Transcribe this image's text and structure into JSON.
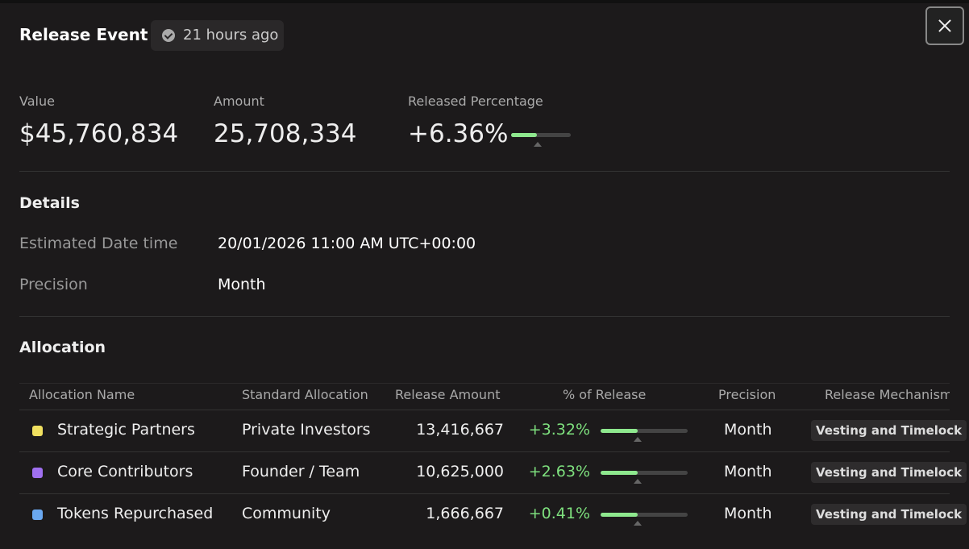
{
  "header": {
    "title": "Release Event",
    "time": "21 hours ago"
  },
  "stats": [
    {
      "label": "Value",
      "value": "$45,760,834"
    },
    {
      "label": "Amount",
      "value": "25,708,334"
    },
    {
      "label": "Released Percentage",
      "value": "+6.36%"
    }
  ],
  "details": {
    "title": "Details",
    "rows": [
      [
        "Estimated Date time",
        "20/01/2026 11:00 AM UTC+00:00"
      ],
      [
        "Precision",
        "Month"
      ]
    ]
  },
  "allocation": {
    "title": "Allocation",
    "columns": [
      "Allocation Name",
      "Standard Allocation",
      "Release Amount",
      "% of Release",
      "Precision",
      "Release Mechanism"
    ],
    "rows": [
      {
        "color": "#f0e060",
        "name": "Strategic Partners",
        "standard": "Private Investors",
        "amount": "13,416,667",
        "percent": "+3.32%",
        "precision": "Month",
        "mechanism": "Vesting and Timelock"
      },
      {
        "color": "#a070f0",
        "name": "Core Contributors",
        "standard": "Founder / Team",
        "amount": "10,625,000",
        "percent": "+2.63%",
        "precision": "Month",
        "mechanism": "Vesting and Timelock"
      },
      {
        "color": "#6aa8f0",
        "name": "Tokens Repurchased",
        "standard": "Community",
        "amount": "1,666,667",
        "percent": "+0.41%",
        "precision": "Month",
        "mechanism": "Vesting and Timelock"
      }
    ]
  }
}
